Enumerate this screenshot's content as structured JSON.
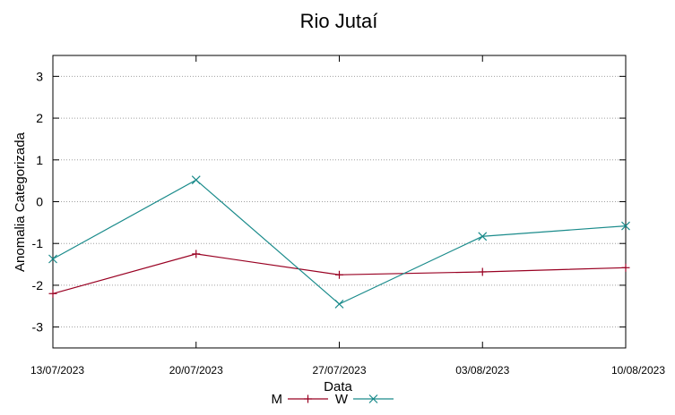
{
  "chart_data": {
    "type": "line",
    "title": "Rio Jutaí",
    "xlabel": "Data",
    "ylabel": "Anomalia Categorizada",
    "x": [
      "13/07/2023",
      "20/07/2023",
      "27/07/2023",
      "03/08/2023",
      "10/08/2023"
    ],
    "ylim": [
      -3.5,
      3.5
    ],
    "yticks": [
      -3,
      -2,
      -1,
      0,
      1,
      2,
      3
    ],
    "grid": "horizontal",
    "legend": "bottom-center",
    "series": [
      {
        "name": "M",
        "color": "#990022",
        "marker": "plus",
        "values": [
          -2.2,
          -1.25,
          -1.75,
          -1.68,
          -1.58
        ]
      },
      {
        "name": "W",
        "color": "#1a8b8b",
        "marker": "cross",
        "values": [
          -1.37,
          0.52,
          -2.45,
          -0.83,
          -0.58
        ]
      }
    ]
  }
}
